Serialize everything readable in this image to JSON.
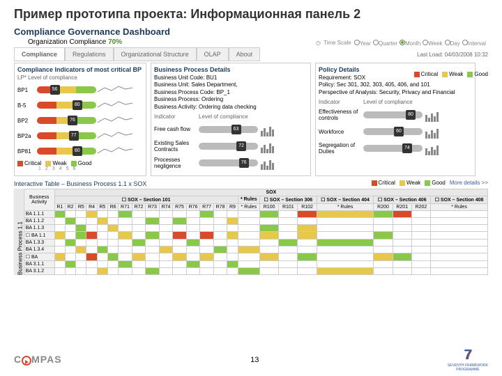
{
  "slide_title": "Пример прототипа проекта: Информационная панель 2",
  "dashboard_title": "Compliance Governance Dashboard",
  "org_compliance_label": "Organization Compliance",
  "org_compliance_value": "70%",
  "time_scale_label": "Time Scale",
  "time_scale_options": [
    "Year",
    "Quarter",
    "Month",
    "Week",
    "Day",
    "Interval"
  ],
  "time_scale_selected": 2,
  "tabs": [
    "Compliance",
    "Regulations",
    "Organizational Structure",
    "OLAP",
    "About"
  ],
  "last_load": "Last Load: 04/03/2008   10:32",
  "legend": {
    "critical": "Critical",
    "weak": "Weak",
    "good": "Good"
  },
  "panel1": {
    "title": "Compliance Indicators of most critical BP",
    "sub": "LP*            Level of compliance",
    "rows": [
      {
        "label": "BP1",
        "value": 56,
        "pos": 30
      },
      {
        "label": "B-5",
        "value": 80,
        "pos": 68
      },
      {
        "label": "BP2",
        "value": 76,
        "pos": 60
      },
      {
        "label": "BP2a",
        "value": 77,
        "pos": 62
      },
      {
        "label": "BP81",
        "value": 80,
        "pos": 68
      }
    ],
    "axis": [
      "1",
      "2",
      "3",
      "4",
      "5",
      "6"
    ],
    "legend_labels": [
      "Critical",
      "Weak",
      "Good"
    ]
  },
  "panel2": {
    "title": "Business Process Details",
    "details": "Business Unit Code: BU1\nBusiness Unit: Sales Department,\nBusiness Process Code: BP_1\nBusiness Process: Ordering\nBusiness Activity: Ordering data checking",
    "ind_header_l": "Indicator",
    "ind_header_r": "Level of compliance",
    "rows": [
      {
        "label": "Free cash flow",
        "value": 63
      },
      {
        "label": "Existing Sales Contracts",
        "value": 72
      },
      {
        "label": "Processes negligence",
        "value": 76
      }
    ]
  },
  "panel3": {
    "title": "Policy Details",
    "details": "Requirement: SOX\nPolicy: Sec 301, 302, 303, 405, 406, and 101\nPerspective of Analysis: Security, Privacy and Financial",
    "ind_header_l": "Indicator",
    "ind_header_r": "Level of compliance",
    "rows": [
      {
        "label": "Effectiveness of controls",
        "value": 80
      },
      {
        "label": "Workforce",
        "value": 60
      },
      {
        "label": "Segregation of Duties",
        "value": 74
      }
    ]
  },
  "table": {
    "title": "Interactive Table – Business Process 1.1 x SOX",
    "more": "More details >>",
    "side_label": "Business Process 1.1",
    "sox_header": "SOX",
    "sections": [
      {
        "label": "☐ SOX – Section 101",
        "cols": [
          "R1",
          "R2",
          "R5",
          "R4",
          "R5",
          "R6",
          "R71",
          "R72",
          "R73",
          "R74",
          "R75",
          "R76",
          "R77",
          "R78",
          "R9"
        ]
      },
      {
        "label": "* Rules",
        "cols": []
      },
      {
        "label": "☐ SOX – Section 306",
        "cols": [
          "R100",
          "R101",
          "R102"
        ]
      },
      {
        "label": "☐ SOX – Section 404",
        "cols": []
      },
      {
        "label": "☐ SOX – Section 406",
        "cols": [
          "R200",
          "R201",
          "R202"
        ]
      },
      {
        "label": "☐ SOX – Section 408",
        "cols": []
      }
    ],
    "activity_header": "Business Activity",
    "rows": [
      "BA 1.1.1",
      "BA 1.1.2",
      "BA 1.1.3",
      "☐ BA 1.1",
      "BA 1.3.3",
      "BA 1.3.4",
      "☐ BA",
      "BA 3.1.1",
      "BA 3.1.2"
    ],
    "cells": {
      "0": {
        "0": "g",
        "3": "y",
        "6": "g",
        "12": "g",
        "16": "g",
        "18": "r",
        "19": "y",
        "20": "g",
        "21": "r"
      },
      "1": {
        "1": "g",
        "4": "y",
        "8": "g",
        "10": "g",
        "14": "y"
      },
      "2": {
        "2": "g",
        "5": "y",
        "16": "g",
        "18": "y"
      },
      "3": {
        "0": "y",
        "2": "g",
        "3": "r",
        "6": "y",
        "8": "g",
        "10": "r",
        "12": "r",
        "14": "y",
        "16": "y",
        "18": "y",
        "20": "g"
      },
      "4": {
        "1": "g",
        "7": "g",
        "11": "g",
        "17": "g",
        "19": "g"
      },
      "5": {
        "2": "y",
        "4": "g",
        "9": "y",
        "13": "g",
        "15": "y"
      },
      "6": {
        "0": "y",
        "3": "r",
        "5": "g",
        "7": "y",
        "10": "y",
        "12": "y",
        "16": "y",
        "18": "g",
        "20": "y",
        "21": "g"
      },
      "7": {
        "1": "g",
        "6": "g",
        "11": "g",
        "14": "g"
      },
      "8": {
        "4": "y",
        "8": "g",
        "15": "g",
        "19": "y"
      }
    }
  },
  "colors": {
    "critical": "#d84a2a",
    "weak": "#e8c84a",
    "good": "#8ac84a",
    "title": "#1a3a5c",
    "gray": "#bbbbbb"
  },
  "page_number": "13",
  "logo_compass": {
    "text1": "C",
    "text2": "MPAS"
  },
  "logo_7": {
    "label": "SEVENTH FRAMEWORK\nPROGRAMME"
  }
}
